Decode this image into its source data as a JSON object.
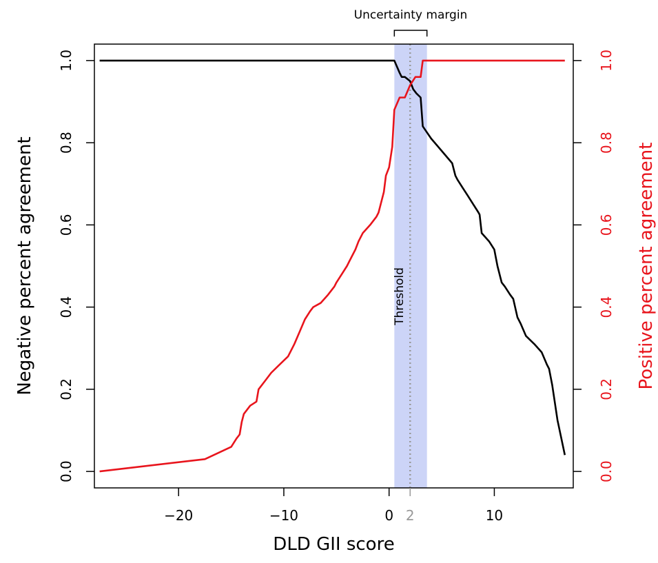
{
  "chart_data": {
    "type": "line",
    "xlabel": "DLD GII score",
    "ylabel_left": "Negative percent agreement",
    "ylabel_right": "Positive percent agreement",
    "xlim": [
      -28,
      17.5
    ],
    "ylim": [
      -0.04,
      1.04
    ],
    "x_ticks": [
      {
        "value": -20,
        "label": "−20"
      },
      {
        "value": -10,
        "label": "−10"
      },
      {
        "value": 0,
        "label": "0"
      },
      {
        "value": 2,
        "label": "2",
        "color": "#999999"
      },
      {
        "value": 10,
        "label": "10"
      }
    ],
    "y_ticks": [
      {
        "value": 0.0,
        "label": "0.0"
      },
      {
        "value": 0.2,
        "label": "0.2"
      },
      {
        "value": 0.4,
        "label": "0.4"
      },
      {
        "value": 0.6,
        "label": "0.6"
      },
      {
        "value": 0.8,
        "label": "0.8"
      },
      {
        "value": 1.0,
        "label": "1.0"
      }
    ],
    "right_axis_color": "#e8141c",
    "threshold": {
      "x": 2,
      "label": "Threshold",
      "color": "#999999"
    },
    "uncertainty_band": {
      "x0": 0.5,
      "x1": 3.6,
      "label": "Uncertainty margin",
      "color": "#ccd4f7"
    },
    "grid": false,
    "series": [
      {
        "name": "Negative percent agreement",
        "color": "#000000",
        "axis": "left",
        "x": [
          -27.5,
          0.5,
          1.0,
          1.2,
          1.5,
          2.0,
          2.3,
          2.6,
          3.0,
          3.2,
          4.0,
          5.0,
          6.0,
          6.3,
          6.5,
          7.0,
          7.5,
          8.0,
          8.5,
          8.6,
          8.8,
          9.5,
          10.0,
          10.3,
          10.7,
          11.0,
          11.5,
          11.8,
          12.2,
          12.5,
          13.0,
          13.8,
          14.5,
          15.0,
          15.2,
          15.5,
          16.0,
          16.7
        ],
        "y": [
          1.0,
          1.0,
          0.97,
          0.96,
          0.96,
          0.95,
          0.93,
          0.92,
          0.91,
          0.84,
          0.81,
          0.78,
          0.75,
          0.72,
          0.71,
          0.69,
          0.67,
          0.65,
          0.63,
          0.625,
          0.58,
          0.56,
          0.54,
          0.5,
          0.46,
          0.45,
          0.43,
          0.42,
          0.375,
          0.36,
          0.33,
          0.31,
          0.29,
          0.26,
          0.25,
          0.21,
          0.125,
          0.04
        ]
      },
      {
        "name": "Positive percent agreement",
        "color": "#e8141c",
        "axis": "right",
        "x": [
          -27.5,
          -17.5,
          -15.0,
          -14.5,
          -14.2,
          -14.0,
          -13.8,
          -13.2,
          -12.6,
          -12.4,
          -11.8,
          -11.2,
          -10.4,
          -9.6,
          -9.0,
          -8.5,
          -8.0,
          -7.5,
          -7.2,
          -6.5,
          -5.8,
          -5.2,
          -5.0,
          -4.5,
          -4.0,
          -3.8,
          -3.2,
          -2.9,
          -2.5,
          -1.8,
          -1.2,
          -1.0,
          -0.5,
          -0.3,
          0.0,
          0.3,
          0.5,
          1.0,
          1.5,
          2.0,
          2.5,
          3.0,
          3.2,
          16.7
        ],
        "y": [
          0.0,
          0.03,
          0.06,
          0.08,
          0.09,
          0.12,
          0.14,
          0.16,
          0.17,
          0.2,
          0.22,
          0.24,
          0.26,
          0.28,
          0.31,
          0.34,
          0.37,
          0.39,
          0.4,
          0.41,
          0.43,
          0.45,
          0.46,
          0.48,
          0.5,
          0.51,
          0.54,
          0.56,
          0.58,
          0.6,
          0.62,
          0.63,
          0.68,
          0.72,
          0.74,
          0.79,
          0.88,
          0.91,
          0.91,
          0.94,
          0.96,
          0.96,
          1.0,
          1.0
        ]
      }
    ]
  }
}
